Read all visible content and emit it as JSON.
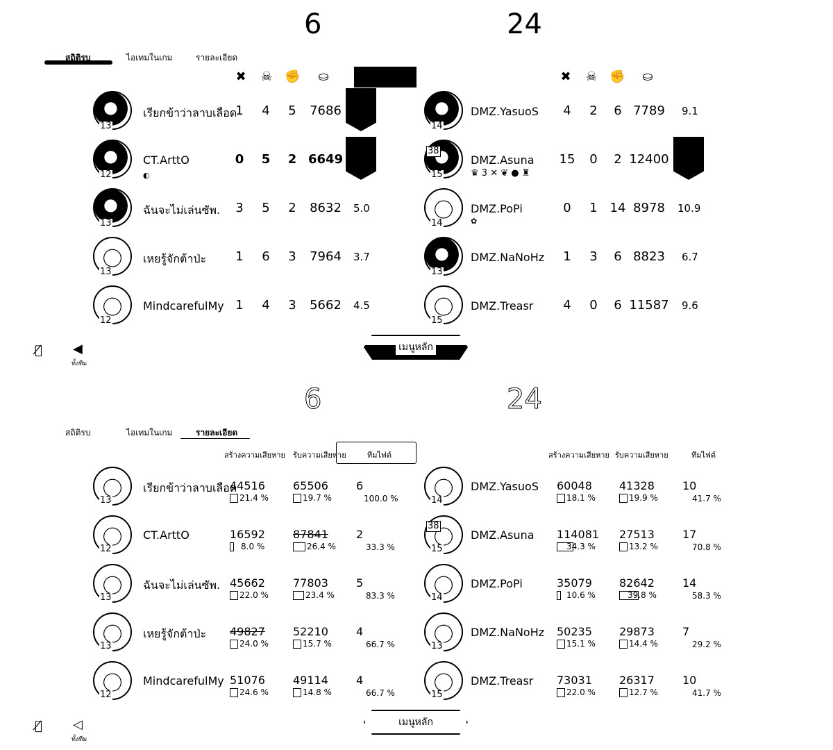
{
  "top": {
    "score_left": "6",
    "score_right": "24",
    "tabs": [
      "สถิติรบ",
      "ไอเทมในเกม",
      "รายละเอียด"
    ],
    "active_tab": 0,
    "headers": {
      "kills_icon": "crossed-swords-icon",
      "deaths_icon": "skull-icon",
      "assists_icon": "fist-icon",
      "gold_icon": "coins-icon"
    },
    "left_team": [
      {
        "name": "เรียกข้าว่าลาบเลือด",
        "level": "13",
        "k": "1",
        "d": "4",
        "a": "5",
        "gold": "7686",
        "rating": "",
        "badge": true,
        "sub": ""
      },
      {
        "name": "CT.ArttO",
        "level": "12",
        "k": "0",
        "d": "5",
        "a": "2",
        "gold": "6649",
        "rating": "",
        "badge": true,
        "sub": "◐"
      },
      {
        "name": "ฉันจะไม่เล่นซัพ.",
        "level": "13",
        "k": "3",
        "d": "5",
        "a": "2",
        "gold": "8632",
        "rating": "5.0",
        "badge": false,
        "sub": ""
      },
      {
        "name": "เหยรู้จักต้าป่ะ",
        "level": "13",
        "k": "1",
        "d": "6",
        "a": "3",
        "gold": "7964",
        "rating": "3.7",
        "badge": false,
        "sub": ""
      },
      {
        "name": "MindcarefulMy",
        "level": "12",
        "k": "1",
        "d": "4",
        "a": "3",
        "gold": "5662",
        "rating": "4.5",
        "badge": false,
        "sub": ""
      }
    ],
    "right_team": [
      {
        "name": "DMZ.YasuoS",
        "level": "14",
        "k": "4",
        "d": "2",
        "a": "6",
        "gold": "7789",
        "rating": "9.1",
        "badge": false,
        "sub": ""
      },
      {
        "name": "DMZ.Asuna",
        "level": "15",
        "k": "15",
        "d": "0",
        "a": "2",
        "gold": "12400",
        "rating": "",
        "badge": true,
        "sub": "♛ 3 ✕ ❦ ● ♜",
        "extra": "38"
      },
      {
        "name": "DMZ.PoPi",
        "level": "14",
        "k": "0",
        "d": "1",
        "a": "14",
        "gold": "8978",
        "rating": "10.9",
        "badge": false,
        "sub": "✿"
      },
      {
        "name": "DMZ.NaNoHz",
        "level": "13",
        "k": "1",
        "d": "3",
        "a": "6",
        "gold": "8823",
        "rating": "6.7",
        "badge": false,
        "sub": ""
      },
      {
        "name": "DMZ.Treasr",
        "level": "15",
        "k": "4",
        "d": "0",
        "a": "6",
        "gold": "11587",
        "rating": "9.6",
        "badge": false,
        "sub": ""
      }
    ],
    "menu_label": "เมนูหลัก",
    "team_mute_label": "ทั้งทีม"
  },
  "bottom": {
    "score_left": "6",
    "score_right": "24",
    "tabs": [
      "สถิติรบ",
      "ไอเทมในเกม",
      "รายละเอียด"
    ],
    "active_tab": 2,
    "col_headers": {
      "dealt": "สร้างความเสียหาย",
      "taken": "รับความเสียหาย",
      "teamfight": "ทีมไฟต์"
    },
    "left_team": [
      {
        "name": "เรียกข้าว่าลาบเลือด",
        "level": "13",
        "dealt": "44516",
        "dealt_pct": "21.4 %",
        "taken": "65506",
        "taken_pct": "19.7 %",
        "tf": "6",
        "tf_pct": "100.0 %"
      },
      {
        "name": "CT.ArttO",
        "level": "12",
        "dealt": "16592",
        "dealt_pct": "8.0 %",
        "taken": "87841",
        "taken_pct": "26.4 %",
        "tf": "2",
        "tf_pct": "33.3 %"
      },
      {
        "name": "ฉันจะไม่เล่นซัพ.",
        "level": "13",
        "dealt": "45662",
        "dealt_pct": "22.0 %",
        "taken": "77803",
        "taken_pct": "23.4 %",
        "tf": "5",
        "tf_pct": "83.3 %"
      },
      {
        "name": "เหยรู้จักต้าป่ะ",
        "level": "13",
        "dealt": "49827",
        "dealt_pct": "24.0 %",
        "taken": "52210",
        "taken_pct": "15.7 %",
        "tf": "4",
        "tf_pct": "66.7 %"
      },
      {
        "name": "MindcarefulMy",
        "level": "12",
        "dealt": "51076",
        "dealt_pct": "24.6 %",
        "taken": "49114",
        "taken_pct": "14.8 %",
        "tf": "4",
        "tf_pct": "66.7 %"
      }
    ],
    "right_team": [
      {
        "name": "DMZ.YasuoS",
        "level": "14",
        "dealt": "60048",
        "dealt_pct": "18.1 %",
        "taken": "41328",
        "taken_pct": "19.9 %",
        "tf": "10",
        "tf_pct": "41.7 %"
      },
      {
        "name": "DMZ.Asuna",
        "level": "15",
        "dealt": "114081",
        "dealt_pct": "34.3 %",
        "taken": "27513",
        "taken_pct": "13.2 %",
        "tf": "17",
        "tf_pct": "70.8 %",
        "extra": "38"
      },
      {
        "name": "DMZ.PoPi",
        "level": "14",
        "dealt": "35079",
        "dealt_pct": "10.6 %",
        "taken": "82642",
        "taken_pct": "39.8 %",
        "tf": "14",
        "tf_pct": "58.3 %"
      },
      {
        "name": "DMZ.NaNoHz",
        "level": "13",
        "dealt": "50235",
        "dealt_pct": "15.1 %",
        "taken": "29873",
        "taken_pct": "14.4 %",
        "tf": "7",
        "tf_pct": "29.2 %"
      },
      {
        "name": "DMZ.Treasr",
        "level": "15",
        "dealt": "73031",
        "dealt_pct": "22.0 %",
        "taken": "26317",
        "taken_pct": "12.7 %",
        "tf": "10",
        "tf_pct": "41.7 %"
      }
    ],
    "menu_label": "เมนูหลัก",
    "team_mute_label": "ทั้งทีม"
  }
}
